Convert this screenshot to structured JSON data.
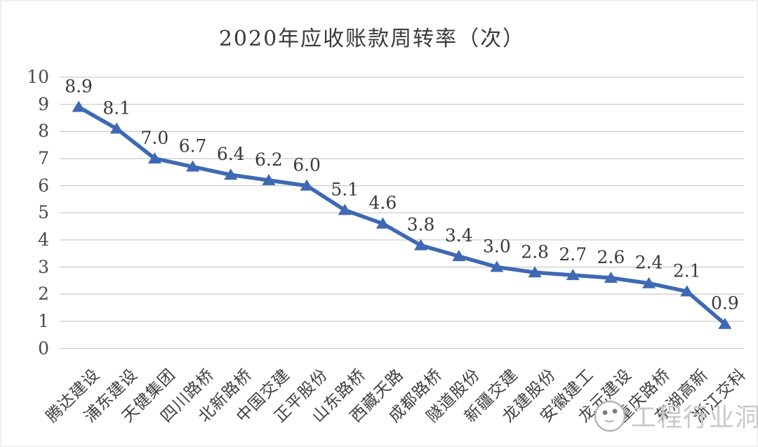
{
  "chart_data": {
    "type": "line",
    "title": "2020年应收账款周转率（次）",
    "categories": [
      "腾达建设",
      "浦东建设",
      "天健集团",
      "四川路桥",
      "北新路桥",
      "中国交建",
      "正平股份",
      "山东路桥",
      "西藏天路",
      "成都路桥",
      "隧道股份",
      "新疆交建",
      "龙建股份",
      "安徽建工",
      "龙元建设",
      "重庆路桥",
      "东湖高新",
      "浙江交科"
    ],
    "values": [
      8.9,
      8.1,
      7.0,
      6.7,
      6.4,
      6.2,
      6.0,
      5.1,
      4.6,
      3.8,
      3.4,
      3.0,
      2.8,
      2.7,
      2.6,
      2.4,
      2.1,
      0.9
    ],
    "ylim": [
      0,
      10
    ],
    "ytick_step": 1,
    "yticks": [
      0,
      1,
      2,
      3,
      4,
      5,
      6,
      7,
      8,
      9,
      10
    ],
    "grid": "horizontal",
    "legend": "none",
    "marker": "triangle",
    "data_labels": true,
    "label_decimals": 1,
    "xlabel": "",
    "ylabel": "",
    "colors": {
      "line": "#3E69B4",
      "marker": "#3E69B4",
      "grid": "#CECECE",
      "data_label": "#3A3A3A",
      "axis_text": "#4A4A4A"
    }
  },
  "watermark": {
    "text": "工程行业洞察",
    "logo": "face-circle-logo",
    "color": "#C9C9C9"
  }
}
